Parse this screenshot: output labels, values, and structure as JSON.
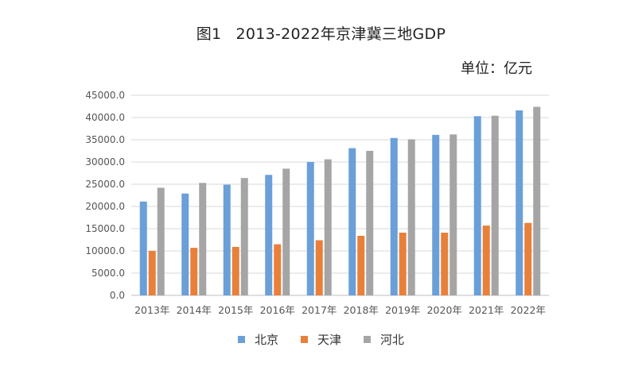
{
  "chart_data": {
    "type": "bar",
    "title_prefix": "图1",
    "title": "2013-2022年京津冀三地GDP",
    "unit_label": "单位：亿元",
    "categories": [
      "2013年",
      "2014年",
      "2015年",
      "2016年",
      "2017年",
      "2018年",
      "2019年",
      "2020年",
      "2021年",
      "2022年"
    ],
    "series": [
      {
        "name": "北京",
        "color": "#6a9fd8",
        "values": [
          21100,
          22900,
          24900,
          27100,
          30000,
          33100,
          35400,
          36100,
          40300,
          41600
        ]
      },
      {
        "name": "天津",
        "color": "#e8803a",
        "values": [
          10000,
          10700,
          10900,
          11500,
          12400,
          13400,
          14100,
          14100,
          15700,
          16300
        ]
      },
      {
        "name": "河北",
        "color": "#a5a5a5",
        "values": [
          24200,
          25300,
          26400,
          28500,
          30600,
          32500,
          35100,
          36200,
          40400,
          42400
        ]
      }
    ],
    "yticks": [
      "0.0",
      "5000.0",
      "10000.0",
      "15000.0",
      "20000.0",
      "25000.0",
      "30000.0",
      "35000.0",
      "40000.0",
      "45000.0"
    ],
    "ylim": [
      0,
      45000
    ],
    "grid": true,
    "legend_position": "bottom"
  }
}
